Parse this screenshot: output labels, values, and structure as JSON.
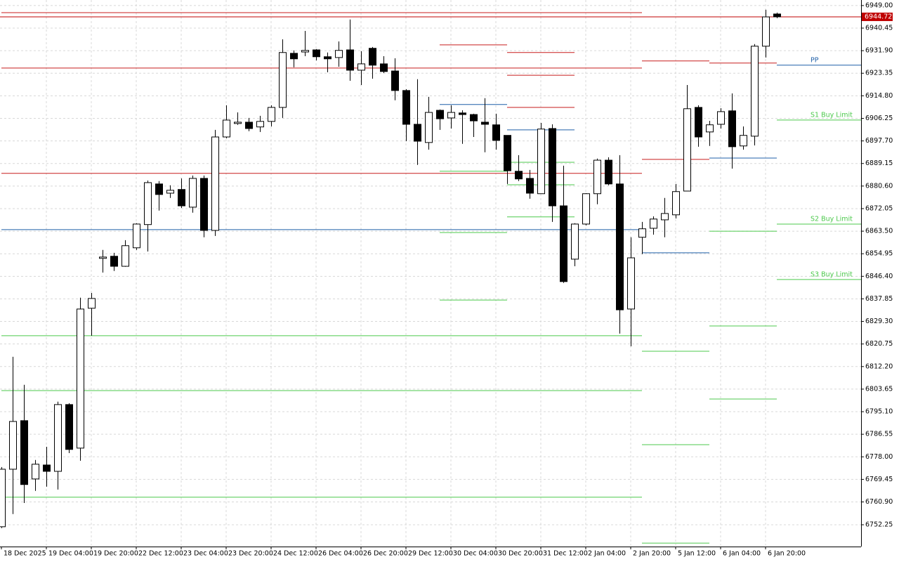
{
  "chart_data": {
    "type": "candlestick",
    "grid": true,
    "ylim": [
      6744.0,
      6951.1
    ],
    "yticks": [
      {
        "value": 6949.0,
        "label": "6949.00"
      },
      6940.45,
      {
        "value": 6931.9,
        "label": "6931.90"
      },
      6923.35,
      {
        "value": 6914.8,
        "label": "6914.80"
      },
      6906.25,
      {
        "value": 6897.7,
        "label": "6897.70"
      },
      6889.15,
      {
        "value": 6880.6,
        "label": "6880.60"
      },
      6872.05,
      {
        "value": 6863.5,
        "label": "6863.50"
      },
      6854.95,
      {
        "value": 6846.4,
        "label": "6846.40"
      },
      6837.85,
      {
        "value": 6829.3,
        "label": "6829.30"
      },
      6820.75,
      {
        "value": 6812.2,
        "label": "6812.20"
      },
      6803.65,
      {
        "value": 6795.1,
        "label": "6795.10"
      },
      6786.55,
      {
        "value": 6778.0,
        "label": "6778.00"
      },
      6769.45,
      {
        "value": 6760.9,
        "label": "6760.90"
      },
      6752.25
    ],
    "categories": [
      "18 Dec 2025",
      null,
      null,
      null,
      "19 Dec 04:00",
      null,
      null,
      null,
      "19 Dec 20:00",
      null,
      null,
      null,
      "22 Dec 12:00",
      null,
      null,
      null,
      "23 Dec 04:00",
      null,
      null,
      null,
      "23 Dec 20:00",
      null,
      null,
      null,
      "24 Dec 12:00",
      null,
      null,
      null,
      "26 Dec 04:00",
      null,
      null,
      null,
      "26 Dec 20:00",
      null,
      null,
      null,
      "29 Dec 12:00",
      null,
      null,
      null,
      "30 Dec 04:00",
      null,
      null,
      null,
      "30 Dec 20:00",
      null,
      null,
      null,
      "31 Dec 12:00",
      null,
      null,
      null,
      "2 Jan 04:00",
      null,
      null,
      null,
      "2 Jan 20:00",
      null,
      null,
      null,
      "5 Jan 12:00",
      null,
      null,
      null,
      "6 Jan 04:00",
      null,
      null,
      null,
      "6 Jan 20:00",
      null
    ],
    "open": [
      6751.5,
      6773.3,
      6791.7,
      6769.6,
      6774.9,
      6772.5,
      6797.8,
      6781.3,
      6834.3,
      6853.2,
      6854.0,
      6850.2,
      6857.2,
      6866.0,
      6881.4,
      6877.9,
      6879.3,
      6872.6,
      6883.5,
      6863.8,
      6899.2,
      6904.3,
      6904.8,
      6903.0,
      6905.1,
      6910.4,
      6930.9,
      6931.4,
      6932.2,
      6929.6,
      6929.3,
      6932.2,
      6924.5,
      6932.8,
      6926.9,
      6924.2,
      6916.8,
      6904.0,
      6897.1,
      6909.3,
      6906.4,
      6908.3,
      6907.7,
      6904.8,
      6903.8,
      6899.8,
      6886.2,
      6883.5,
      6877.7,
      6902.4,
      6873.1,
      6852.9,
      6866.2,
      6877.7,
      6890.4,
      6881.4,
      6834.0,
      6861.2,
      6864.6,
      6867.8,
      6869.7,
      6878.7,
      6910.4,
      6901.1,
      6904.0,
      6909.1,
      6895.8,
      6899.5,
      6933.6,
      6945.8
    ],
    "high": [
      6774.1,
      6815.9,
      6805.3,
      6776.8,
      6781.8,
      6798.9,
      6798.3,
      6838.3,
      6840.1,
      6856.4,
      6855.3,
      6860.1,
      6866.5,
      6882.7,
      6882.5,
      6880.9,
      6883.5,
      6884.6,
      6884.6,
      6901.9,
      6911.2,
      6908.5,
      6906.4,
      6907.2,
      6911.2,
      6936.2,
      6932.0,
      6939.4,
      6932.5,
      6931.2,
      6935.4,
      6943.7,
      6931.7,
      6933.3,
      6929.8,
      6929.0,
      6917.3,
      6921.1,
      6914.4,
      6909.6,
      6911.2,
      6909.3,
      6908.0,
      6913.9,
      6908.0,
      6899.8,
      6892.3,
      6886.7,
      6904.5,
      6904.0,
      6888.3,
      6866.5,
      6877.9,
      6891.0,
      6891.5,
      6892.3,
      6861.2,
      6867.0,
      6869.1,
      6876.1,
      6881.4,
      6918.9,
      6911.2,
      6905.3,
      6910.1,
      6915.7,
      6903.2,
      6934.4,
      6947.4,
      6946.3
    ],
    "low": [
      6751.0,
      6756.3,
      6760.5,
      6765.1,
      6766.7,
      6765.6,
      6779.4,
      6776.5,
      6823.9,
      6847.8,
      6848.4,
      6850.0,
      6856.4,
      6855.8,
      6871.3,
      6876.1,
      6872.3,
      6870.5,
      6861.2,
      6861.7,
      6898.7,
      6903.8,
      6901.4,
      6901.1,
      6903.2,
      6906.4,
      6925.6,
      6929.8,
      6928.2,
      6923.7,
      6925.8,
      6920.5,
      6918.9,
      6921.3,
      6923.4,
      6913.1,
      6897.6,
      6888.6,
      6894.4,
      6901.9,
      6902.4,
      6896.6,
      6899.2,
      6893.4,
      6894.4,
      6881.4,
      6882.5,
      6875.8,
      6877.7,
      6867.0,
      6843.9,
      6850.2,
      6865.7,
      6873.7,
      6880.9,
      6824.7,
      6819.9,
      6854.8,
      6862.2,
      6861.2,
      6868.3,
      6878.7,
      6895.5,
      6895.8,
      6902.4,
      6887.2,
      6894.4,
      6896.0,
      6929.3,
      6944.2
    ],
    "close": [
      6773.3,
      6791.4,
      6767.5,
      6775.2,
      6772.5,
      6797.8,
      6780.8,
      6834.0,
      6838.0,
      6853.7,
      6850.2,
      6858.0,
      6866.2,
      6881.9,
      6877.4,
      6879.0,
      6873.1,
      6883.5,
      6863.8,
      6899.2,
      6905.6,
      6904.8,
      6902.4,
      6905.1,
      6910.4,
      6931.2,
      6928.8,
      6932.0,
      6929.6,
      6928.8,
      6932.0,
      6924.5,
      6926.9,
      6926.4,
      6924.0,
      6916.8,
      6904.0,
      6897.6,
      6908.5,
      6906.1,
      6908.5,
      6907.7,
      6905.3,
      6904.0,
      6897.9,
      6886.4,
      6883.3,
      6877.9,
      6902.2,
      6873.1,
      6844.4,
      6866.2,
      6877.7,
      6890.4,
      6881.4,
      6833.7,
      6853.4,
      6864.4,
      6868.1,
      6870.2,
      6878.5,
      6909.9,
      6899.2,
      6903.8,
      6908.8,
      6895.5,
      6899.8,
      6933.6,
      6944.7,
      6944.72
    ],
    "price": 6944.72,
    "price_color": "#c00000",
    "levels": [
      {
        "value": 6946.3,
        "color": "#c81e1e",
        "from": 0,
        "to": 57
      },
      {
        "value": 6925.3,
        "color": "#c81e1e",
        "from": 0,
        "to": 57
      },
      {
        "value": 6885.4,
        "color": "#c81e1e",
        "from": 0,
        "to": 57
      },
      {
        "value": 6864.1,
        "color": "#1f5fa8",
        "from": 0,
        "to": 57
      },
      {
        "value": 6823.9,
        "color": "#4cc94c",
        "from": 0,
        "to": 57
      },
      {
        "value": 6803.1,
        "color": "#4cc94c",
        "from": 0,
        "to": 57
      },
      {
        "value": 6762.7,
        "color": "#4cc94c",
        "from": 0,
        "to": 57
      },
      {
        "value": 6934.1,
        "color": "#c81e1e",
        "from": 39,
        "to": 45
      },
      {
        "value": 6911.5,
        "color": "#1f5fa8",
        "from": 39,
        "to": 45
      },
      {
        "value": 6886.2,
        "color": "#4cc94c",
        "from": 39,
        "to": 45
      },
      {
        "value": 6863.0,
        "color": "#4cc94c",
        "from": 39,
        "to": 45
      },
      {
        "value": 6837.4,
        "color": "#4cc94c",
        "from": 39,
        "to": 45
      },
      {
        "value": 6931.2,
        "color": "#c81e1e",
        "from": 45,
        "to": 51
      },
      {
        "value": 6922.6,
        "color": "#c81e1e",
        "from": 45,
        "to": 51
      },
      {
        "value": 6910.4,
        "color": "#c81e1e",
        "from": 45,
        "to": 51
      },
      {
        "value": 6901.9,
        "color": "#1f5fa8",
        "from": 45,
        "to": 51
      },
      {
        "value": 6889.6,
        "color": "#4cc94c",
        "from": 45,
        "to": 51
      },
      {
        "value": 6881.1,
        "color": "#4cc94c",
        "from": 45,
        "to": 51
      },
      {
        "value": 6868.9,
        "color": "#4cc94c",
        "from": 45,
        "to": 51
      },
      {
        "value": 6928.0,
        "color": "#c81e1e",
        "from": 57,
        "to": 63
      },
      {
        "value": 6890.7,
        "color": "#c81e1e",
        "from": 57,
        "to": 63
      },
      {
        "value": 6855.3,
        "color": "#1f5fa8",
        "from": 57,
        "to": 63
      },
      {
        "value": 6818.0,
        "color": "#4cc94c",
        "from": 57,
        "to": 63
      },
      {
        "value": 6782.6,
        "color": "#4cc94c",
        "from": 57,
        "to": 63
      },
      {
        "value": 6745.3,
        "color": "#4cc94c",
        "from": 57,
        "to": 63
      },
      {
        "value": 6927.2,
        "color": "#c81e1e",
        "from": 63,
        "to": 69
      },
      {
        "value": 6891.2,
        "color": "#1f5fa8",
        "from": 63,
        "to": 69
      },
      {
        "value": 6863.5,
        "color": "#4cc94c",
        "from": 63,
        "to": 69
      },
      {
        "value": 6827.6,
        "color": "#4cc94c",
        "from": 63,
        "to": 69
      },
      {
        "value": 6799.9,
        "color": "#4cc94c",
        "from": 63,
        "to": 69
      },
      {
        "value": 6926.4,
        "color": "#1f5fa8",
        "from": 69,
        "to": 76.5,
        "label": "PP"
      },
      {
        "value": 6905.6,
        "color": "#4cc94c",
        "from": 69,
        "to": 76.5,
        "label": "S1 Buy Limit"
      },
      {
        "value": 6866.2,
        "color": "#4cc94c",
        "from": 69,
        "to": 76.5,
        "label": "S2 Buy Limit"
      },
      {
        "value": 6845.2,
        "color": "#4cc94c",
        "from": 69,
        "to": 76.5,
        "label": "S3 Buy Limit"
      }
    ]
  }
}
